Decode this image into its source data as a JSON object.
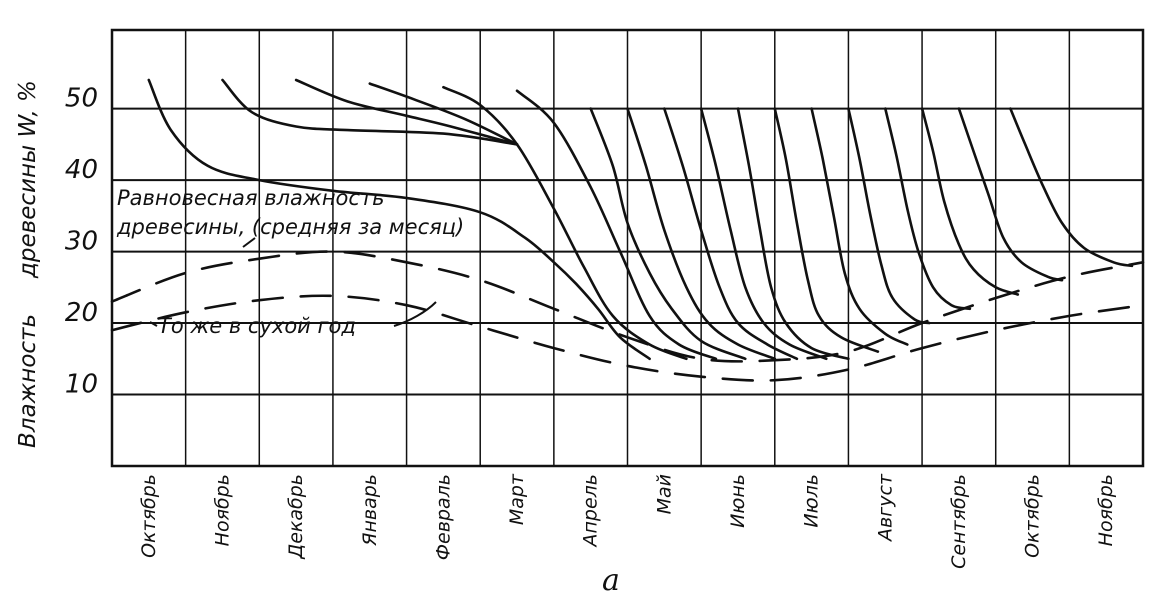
{
  "chart_data": {
    "type": "line",
    "title": "",
    "subtitle": "а",
    "ylabel": "Влажность древесины W, %",
    "xlabel": "",
    "ylim": [
      0,
      61
    ],
    "yticks": [
      10,
      20,
      30,
      40,
      50
    ],
    "grid": true,
    "categories": [
      "Октябрь",
      "Ноябрь",
      "Декабрь",
      "Январь",
      "Февраль",
      "Март",
      "Апрель",
      "Май",
      "Июнь",
      "Июль",
      "Август",
      "Сентябрь",
      "Октябрь",
      "Ноябрь"
    ],
    "series": [
      {
        "name": "Равновесная влажность древесины, (средняя за месяц)",
        "style": "dashed",
        "points": [
          [
            0,
            23
          ],
          [
            1,
            27
          ],
          [
            2,
            29
          ],
          [
            3,
            30
          ],
          [
            4,
            28.5
          ],
          [
            5,
            26
          ],
          [
            6,
            22
          ],
          [
            7,
            18
          ],
          [
            8,
            15
          ],
          [
            9,
            14.8
          ],
          [
            10,
            16
          ],
          [
            11,
            20
          ],
          [
            12,
            23.5
          ],
          [
            13,
            26.5
          ],
          [
            14,
            28.5
          ]
        ]
      },
      {
        "name": "То же в сухой год",
        "style": "dashed",
        "points": [
          [
            0,
            19
          ],
          [
            1,
            21.5
          ],
          [
            2,
            23.2
          ],
          [
            3,
            23.8
          ],
          [
            4,
            22.5
          ],
          [
            5,
            19.5
          ],
          [
            6,
            16.5
          ],
          [
            7,
            14
          ],
          [
            8,
            12.5
          ],
          [
            9,
            12
          ],
          [
            10,
            13.5
          ],
          [
            11,
            16.5
          ],
          [
            12,
            19
          ],
          [
            13,
            21
          ],
          [
            14,
            22.5
          ]
        ]
      },
      {
        "name": "",
        "style": "solid",
        "points": [
          [
            0.5,
            54
          ],
          [
            0.8,
            47
          ],
          [
            1.3,
            42
          ],
          [
            2,
            40
          ],
          [
            3,
            38.5
          ],
          [
            4,
            37.5
          ],
          [
            5,
            35.5
          ],
          [
            5.6,
            32
          ],
          [
            6,
            28.5
          ],
          [
            6.3,
            25.5
          ],
          [
            6.6,
            22
          ],
          [
            6.9,
            18
          ],
          [
            7.3,
            15
          ]
        ]
      },
      {
        "name": "",
        "style": "solid",
        "points": [
          [
            1.5,
            54
          ],
          [
            1.9,
            49.5
          ],
          [
            2.5,
            47.5
          ],
          [
            3.2,
            47
          ],
          [
            4.5,
            46.5
          ],
          [
            5.5,
            45
          ]
        ]
      },
      {
        "name": "",
        "style": "solid",
        "points": [
          [
            2.5,
            54
          ],
          [
            3.2,
            51
          ],
          [
            4,
            49
          ],
          [
            4.6,
            47.5
          ],
          [
            5.5,
            45
          ]
        ]
      },
      {
        "name": "",
        "style": "solid",
        "points": [
          [
            3.5,
            53.5
          ],
          [
            4.1,
            51.3
          ],
          [
            4.8,
            48.5
          ],
          [
            5.5,
            45
          ]
        ]
      },
      {
        "name": "",
        "style": "solid",
        "points": [
          [
            4.5,
            53
          ],
          [
            5,
            50.5
          ],
          [
            5.5,
            45
          ],
          [
            6,
            36
          ],
          [
            6.4,
            28
          ],
          [
            6.8,
            21
          ],
          [
            7.3,
            17
          ],
          [
            7.8,
            15
          ]
        ]
      },
      {
        "name": "",
        "style": "solid",
        "points": [
          [
            5.5,
            52.5
          ],
          [
            6,
            48
          ],
          [
            6.5,
            39
          ],
          [
            6.9,
            30
          ],
          [
            7.3,
            21
          ],
          [
            7.7,
            17
          ],
          [
            8.2,
            15
          ]
        ]
      },
      {
        "name": "",
        "style": "solid",
        "points": [
          [
            6.5,
            50
          ],
          [
            6.8,
            42
          ],
          [
            7,
            34
          ],
          [
            7.3,
            27
          ],
          [
            7.6,
            22
          ],
          [
            8,
            17.5
          ],
          [
            8.6,
            15
          ]
        ]
      },
      {
        "name": "",
        "style": "solid",
        "points": [
          [
            7,
            50
          ],
          [
            7.25,
            42
          ],
          [
            7.5,
            33
          ],
          [
            7.8,
            25
          ],
          [
            8.1,
            20
          ],
          [
            8.5,
            17
          ],
          [
            9,
            15
          ]
        ]
      },
      {
        "name": "",
        "style": "solid",
        "points": [
          [
            7.5,
            50
          ],
          [
            7.75,
            42
          ],
          [
            8,
            33
          ],
          [
            8.25,
            25
          ],
          [
            8.5,
            20
          ],
          [
            8.9,
            17
          ],
          [
            9.3,
            15
          ]
        ]
      },
      {
        "name": "",
        "style": "solid",
        "points": [
          [
            8,
            50
          ],
          [
            8.2,
            42
          ],
          [
            8.4,
            33
          ],
          [
            8.6,
            25
          ],
          [
            8.85,
            20
          ],
          [
            9.2,
            17
          ],
          [
            9.7,
            15
          ]
        ]
      },
      {
        "name": "",
        "style": "solid",
        "points": [
          [
            8.5,
            50
          ],
          [
            8.65,
            42
          ],
          [
            8.8,
            33
          ],
          [
            8.95,
            25
          ],
          [
            9.15,
            20
          ],
          [
            9.5,
            16.5
          ],
          [
            10,
            15
          ]
        ]
      },
      {
        "name": "",
        "style": "solid",
        "points": [
          [
            9,
            50
          ],
          [
            9.15,
            43
          ],
          [
            9.3,
            34
          ],
          [
            9.45,
            26
          ],
          [
            9.6,
            21
          ],
          [
            9.9,
            18
          ],
          [
            10.4,
            16
          ]
        ]
      },
      {
        "name": "",
        "style": "solid",
        "points": [
          [
            9.5,
            50
          ],
          [
            9.65,
            43
          ],
          [
            9.8,
            35
          ],
          [
            9.95,
            27
          ],
          [
            10.15,
            22
          ],
          [
            10.5,
            18.5
          ],
          [
            10.8,
            17
          ]
        ]
      },
      {
        "name": "",
        "style": "solid",
        "points": [
          [
            10,
            50
          ],
          [
            10.15,
            43
          ],
          [
            10.3,
            35
          ],
          [
            10.45,
            28
          ],
          [
            10.6,
            23.5
          ],
          [
            10.9,
            20.5
          ],
          [
            11.1,
            20
          ]
        ]
      },
      {
        "name": "",
        "style": "solid",
        "points": [
          [
            10.5,
            50
          ],
          [
            10.65,
            43.5
          ],
          [
            10.8,
            36
          ],
          [
            10.95,
            30
          ],
          [
            11.15,
            25
          ],
          [
            11.4,
            22.5
          ],
          [
            11.65,
            22
          ]
        ]
      },
      {
        "name": "",
        "style": "solid",
        "points": [
          [
            11,
            50
          ],
          [
            11.15,
            44
          ],
          [
            11.3,
            37
          ],
          [
            11.5,
            31
          ],
          [
            11.7,
            27.5
          ],
          [
            12,
            25
          ],
          [
            12.3,
            24
          ]
        ]
      },
      {
        "name": "",
        "style": "solid",
        "points": [
          [
            11.5,
            50
          ],
          [
            11.7,
            44
          ],
          [
            11.9,
            38
          ],
          [
            12.1,
            32
          ],
          [
            12.35,
            28.5
          ],
          [
            12.7,
            26.5
          ],
          [
            12.9,
            26
          ]
        ]
      },
      {
        "name": "",
        "style": "solid",
        "points": [
          [
            12.2,
            50
          ],
          [
            12.4,
            45
          ],
          [
            12.65,
            39
          ],
          [
            12.9,
            34
          ],
          [
            13.2,
            30.5
          ],
          [
            13.6,
            28.5
          ],
          [
            13.85,
            28
          ]
        ]
      }
    ],
    "annotations": [
      {
        "text_lines": [
          "Равновесная влажность",
          "древесины, (средняя за месяц)"
        ]
      },
      {
        "text": "То же в сухой год"
      }
    ]
  }
}
